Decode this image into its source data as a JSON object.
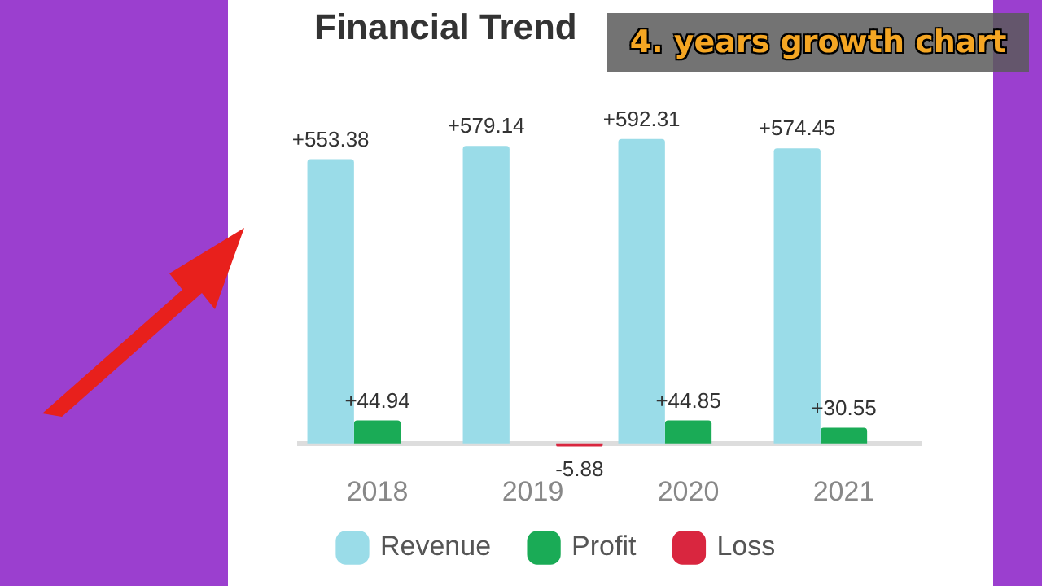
{
  "chart_data": {
    "type": "bar",
    "title": "Financial Trend",
    "annotations": [
      "4. years growth chart"
    ],
    "categories": [
      "2018",
      "2019",
      "2020",
      "2021"
    ],
    "series": [
      {
        "name": "Revenue",
        "color": "#9adce8",
        "values": [
          553.38,
          579.14,
          592.31,
          574.45
        ],
        "value_labels": [
          "+553.38",
          "+579.14",
          "+592.31",
          "+574.45"
        ]
      },
      {
        "name": "Profit",
        "color": "#1aab56",
        "values": [
          44.94,
          null,
          44.85,
          30.55
        ],
        "value_labels": [
          "+44.94",
          null,
          "+44.85",
          "+30.55"
        ]
      },
      {
        "name": "Loss",
        "color": "#d9263f",
        "values": [
          null,
          -5.88,
          null,
          null
        ],
        "value_labels": [
          null,
          "-5.88",
          null,
          null
        ]
      }
    ],
    "grid": false,
    "legend": "bottom",
    "tick_labels": "x"
  }
}
